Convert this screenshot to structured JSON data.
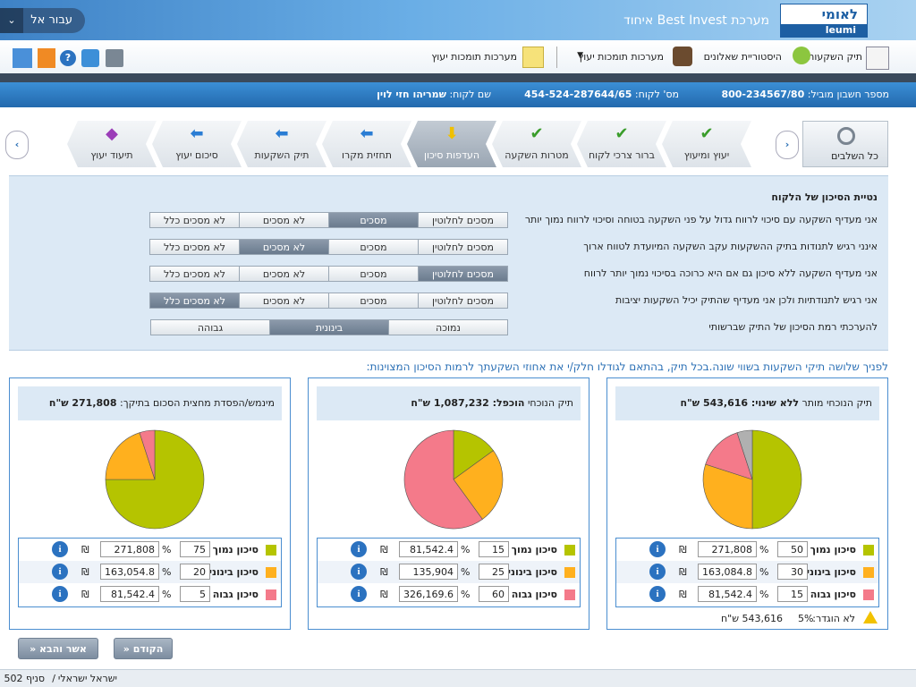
{
  "header": {
    "brand": "מערכת Best Invest איחוד",
    "logo_he": "לאומי",
    "logo_en": "leumi",
    "goto": "עבור אל"
  },
  "toolbar": [
    "תיק השקעות",
    "היסטוריית שאלונים",
    "מערכות תומכות יעוץ",
    "מערכות תומכות יעוץ"
  ],
  "account": {
    "lead_label": "מספר חשבון מוביל:",
    "lead_value": "800-234567/80",
    "client_no_label": "מס' לקוח:",
    "client_no_value": "454-524-287644/65",
    "client_name_label": "שם לקוח:",
    "client_name_value": "שמריהו חזי לוין"
  },
  "steps": {
    "all": "כל השלבים",
    "current": 4,
    "items": [
      "יעוץ ומיעוץ",
      "ברור צרכי לקוח",
      "מטרות השקעה",
      "העדפות סיכון",
      "תחזית מקרו",
      "תיק השקעות",
      "סיכום יעוץ",
      "תיעוד יעוץ"
    ]
  },
  "risk": {
    "title": "נטיית הסיכון של הלקוח",
    "options": [
      "מסכים לחלוטין",
      "מסכים",
      "לא מסכים",
      "לא מסכים כלל"
    ],
    "questions": [
      {
        "text": "אני מעדיף השקעה עם סיכוי לרווח גדול על פני השקעה בטוחה וסיכוי לרווח נמוך יותר",
        "selected": 1
      },
      {
        "text": "אינני רגיש לתנודות בתיק ההשקעות עקב השקעה המיועדת לטווח ארוך",
        "selected": 2
      },
      {
        "text": "אני מעדיף השקעה ללא סיכון גם אם היא כרוכה בסיכוי נמוך יותר לרווח",
        "selected": 0
      },
      {
        "text": "אני רגיש לתנודתיות ולכן אני מעדיף שהתיק יכיל השקעות יציבות",
        "selected": 3
      }
    ],
    "level": {
      "text": "להערכתי רמת הסיכון של התיק שברשותי",
      "options": [
        "נמוכה",
        "בינונית",
        "גבוהה"
      ],
      "selected": 1
    }
  },
  "intro": "לפניך שלושה תיקי השקעות בשווי שונה.בכל תיק, בהתאם לגודלו חלק/י את אחוזי השקעתך לרמות הסיכון המצוינות:",
  "currency": "₪",
  "percent_sign": "%",
  "portfolios": [
    {
      "title": "תיק הנוכחי מותר",
      "title_bold": "ללא שינוי: 543,616 ש\"ח",
      "rows": [
        {
          "label": "סיכון נמוך",
          "color": "#b5c400",
          "percent": 50,
          "amount": "271,808"
        },
        {
          "label": "סיכון בינוני",
          "color": "#ffb01e",
          "percent": 30,
          "amount": "163,084.8"
        },
        {
          "label": "סיכון גבוה",
          "color": "#f47a8a",
          "percent": 15,
          "amount": "81,542.4"
        }
      ],
      "unassigned": {
        "label": "לא הוגדר:",
        "value": 5,
        "value_label": "5%",
        "amount": "543,616 ש\"ח",
        "color": "#b0b0b0"
      }
    },
    {
      "title": "תיק הנוכחי",
      "title_bold": "הוכפל: 1,087,232 ש\"ח",
      "rows": [
        {
          "label": "סיכון נמוך",
          "color": "#b5c400",
          "percent": 15,
          "amount": "81,542.4"
        },
        {
          "label": "סיכון בינוני",
          "color": "#ffb01e",
          "percent": 25,
          "amount": "135,904"
        },
        {
          "label": "סיכון גבוה",
          "color": "#f47a8a",
          "percent": 60,
          "amount": "326,169.6"
        }
      ]
    },
    {
      "title": "מינמש/הפסדת מחצית הסכום בתיקך:",
      "title_bold": "271,808 ש\"ח",
      "rows": [
        {
          "label": "סיכון נמוך",
          "color": "#b5c400",
          "percent": 75,
          "amount": "271,808"
        },
        {
          "label": "סיכון בינוני",
          "color": "#ffb01e",
          "percent": 20,
          "amount": "163,054.8"
        },
        {
          "label": "סיכון גבוה",
          "color": "#f47a8a",
          "percent": 5,
          "amount": "81,542.4"
        }
      ]
    }
  ],
  "nav": {
    "prev": "הקודם",
    "next": "אשר והבא"
  },
  "footer": {
    "user": "ישראל ישראלי",
    "sep": "/",
    "branch": "סניף 502"
  }
}
